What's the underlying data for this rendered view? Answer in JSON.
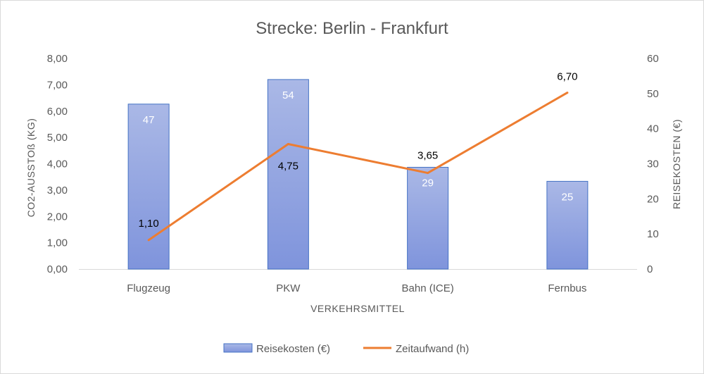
{
  "chart_data": {
    "type": "bar",
    "title": "Strecke: Berlin - Frankfurt",
    "xlabel": "VERKEHRSMITTEL",
    "ylabel_left": "CO2-AUSSTOß (KG)",
    "ylabel_right": "REISEKOSTEN (€)",
    "categories": [
      "Flugzeug",
      "PKW",
      "Bahn (ICE)",
      "Fernbus"
    ],
    "ylim_left": [
      0,
      8
    ],
    "ylim_right": [
      0,
      60
    ],
    "yticks_left": [
      "0,00",
      "1,00",
      "2,00",
      "3,00",
      "4,00",
      "5,00",
      "6,00",
      "7,00",
      "8,00"
    ],
    "yticks_right": [
      "0",
      "10",
      "20",
      "30",
      "40",
      "50",
      "60"
    ],
    "series": [
      {
        "name": "Reisekosten (€)",
        "type": "bar",
        "axis": "right",
        "values": [
          47,
          54,
          29,
          25
        ],
        "labels": [
          "47",
          "54",
          "29",
          "25"
        ],
        "color": "#8ea1dd"
      },
      {
        "name": "Zeitaufwand (h)",
        "type": "line",
        "axis": "left",
        "values": [
          1.1,
          4.75,
          3.65,
          6.7
        ],
        "labels": [
          "1,10",
          "4,75",
          "3,65",
          "6,70"
        ],
        "color": "#ed7d31"
      }
    ],
    "legend_position": "bottom",
    "grid": false
  }
}
